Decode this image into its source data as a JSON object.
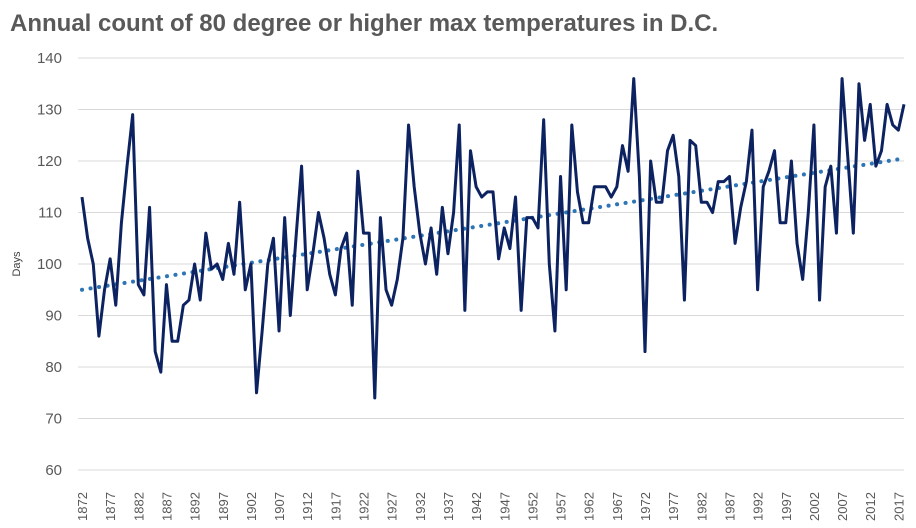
{
  "chart_data": {
    "type": "line",
    "title": "Annual count of 80 degree or higher max temperatures in D.C.",
    "ylabel": "Days",
    "xlabel": "",
    "ylim": [
      60,
      140
    ],
    "yticks": [
      60,
      70,
      80,
      90,
      100,
      110,
      120,
      130,
      140
    ],
    "xlim": [
      1872,
      2018
    ],
    "xticks": [
      1872,
      1877,
      1882,
      1887,
      1892,
      1897,
      1902,
      1907,
      1912,
      1917,
      1922,
      1927,
      1932,
      1937,
      1942,
      1947,
      1952,
      1957,
      1962,
      1967,
      1972,
      1977,
      1982,
      1987,
      1992,
      1997,
      2002,
      2007,
      2012,
      2017
    ],
    "grid": "horizontal",
    "legend": "none",
    "colors": {
      "series": "#0d2260",
      "trend": "#2e75b6"
    },
    "series": [
      {
        "type": "line",
        "x": [
          1872,
          1873,
          1874,
          1875,
          1876,
          1877,
          1878,
          1879,
          1880,
          1881,
          1882,
          1883,
          1884,
          1885,
          1886,
          1887,
          1888,
          1889,
          1890,
          1891,
          1892,
          1893,
          1894,
          1895,
          1896,
          1897,
          1898,
          1899,
          1900,
          1901,
          1902,
          1903,
          1904,
          1905,
          1906,
          1907,
          1908,
          1909,
          1910,
          1911,
          1912,
          1913,
          1914,
          1915,
          1916,
          1917,
          1918,
          1919,
          1920,
          1921,
          1922,
          1923,
          1924,
          1925,
          1926,
          1927,
          1928,
          1929,
          1930,
          1931,
          1932,
          1933,
          1934,
          1935,
          1936,
          1937,
          1938,
          1939,
          1940,
          1941,
          1942,
          1943,
          1944,
          1945,
          1946,
          1947,
          1948,
          1949,
          1950,
          1951,
          1952,
          1953,
          1954,
          1955,
          1956,
          1957,
          1958,
          1959,
          1960,
          1961,
          1962,
          1963,
          1964,
          1965,
          1966,
          1967,
          1968,
          1969,
          1970,
          1971,
          1972,
          1973,
          1974,
          1975,
          1976,
          1977,
          1978,
          1979,
          1980,
          1981,
          1982,
          1983,
          1984,
          1985,
          1986,
          1987,
          1988,
          1989,
          1990,
          1991,
          1992,
          1993,
          1994,
          1995,
          1996,
          1997,
          1998,
          1999,
          2000,
          2001,
          2002,
          2003,
          2004,
          2005,
          2006,
          2007,
          2008,
          2009,
          2010,
          2011,
          2012,
          2013,
          2014,
          2015,
          2016,
          2017,
          2018
        ],
        "values": [
          113,
          105,
          100,
          86,
          95,
          101,
          92,
          108,
          119,
          129,
          96,
          94,
          111,
          83,
          79,
          96,
          85,
          85,
          92,
          93,
          100,
          93,
          106,
          99,
          100,
          97,
          104,
          98,
          112,
          95,
          100,
          75,
          87,
          100,
          105,
          87,
          109,
          90,
          105,
          119,
          95,
          102,
          110,
          105,
          98,
          94,
          103,
          106,
          92,
          118,
          106,
          106,
          74,
          109,
          95,
          92,
          97,
          105,
          127,
          115,
          106,
          100,
          107,
          98,
          111,
          102,
          110,
          127,
          91,
          122,
          115,
          113,
          114,
          114,
          101,
          107,
          103,
          113,
          91,
          109,
          109,
          107,
          128,
          100,
          87,
          117,
          95,
          127,
          114,
          108,
          108,
          115,
          115,
          115,
          113,
          115,
          123,
          118,
          136,
          117,
          83,
          120,
          112,
          112,
          122,
          125,
          117,
          93,
          124,
          123,
          112,
          112,
          110,
          116,
          116,
          117,
          104,
          111,
          116,
          126,
          95,
          115,
          118,
          122,
          108,
          108,
          120,
          104,
          97,
          110,
          127,
          93,
          115,
          119,
          106,
          136,
          121,
          106,
          135,
          124,
          131,
          119,
          122,
          131,
          127,
          126,
          131
        ]
      },
      {
        "type": "trend",
        "x": [
          1872,
          2018
        ],
        "values": [
          95,
          120.5
        ]
      }
    ]
  }
}
